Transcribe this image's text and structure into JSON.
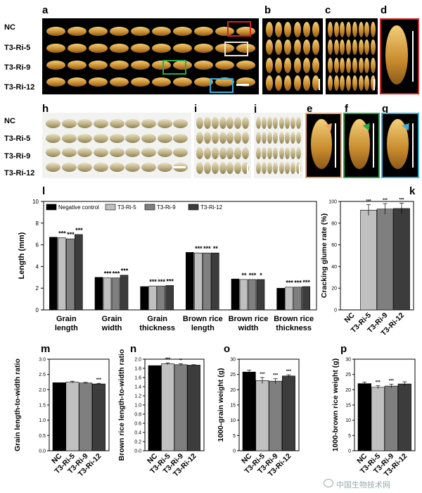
{
  "panel_labels": {
    "a": "a",
    "b": "b",
    "c": "c",
    "d": "d",
    "e": "e",
    "f": "f",
    "g": "g",
    "h": "h",
    "i": "i",
    "j": "j",
    "k": "k",
    "l": "l",
    "m": "m",
    "n": "n",
    "o": "o",
    "p": "p"
  },
  "rows_top": [
    "NC",
    "T3-Ri-5",
    "T3-Ri-9",
    "T3-Ri-12"
  ],
  "rows_bottom": [
    "NC",
    "T3-Ri-5",
    "T3-Ri-9",
    "T3-Ri-12"
  ],
  "colors": {
    "NC": "#000000",
    "T3-Ri-5": "#c0c0c0",
    "T3-Ri-9": "#7f7f7f",
    "T3-Ri-12": "#3c3c3c",
    "box_d": "#d12424",
    "box_e": "#e9a56b",
    "box_f": "#2aa84a",
    "box_g": "#3aaed8",
    "white_box": "#ecead8"
  },
  "watermark": "中国生物技术网",
  "chart_data": [
    {
      "id": "l",
      "type": "bar",
      "categories": [
        "Grain length",
        "Grain width",
        "Grain thickness",
        "Brown rice length",
        "Brown rice width",
        "Brown rice thickness"
      ],
      "category_lines": [
        [
          "Grain",
          "length"
        ],
        [
          "Grain",
          "width"
        ],
        [
          "Grain",
          "thickness"
        ],
        [
          "Brown rice",
          "length"
        ],
        [
          "Brown rice",
          "width"
        ],
        [
          "Brown rice",
          "thickness"
        ]
      ],
      "series": [
        {
          "name": "Negative control",
          "values": [
            6.7,
            3.0,
            2.15,
            5.3,
            2.85,
            2.0
          ]
        },
        {
          "name": "T3-Ri-5",
          "values": [
            6.65,
            2.95,
            2.2,
            5.25,
            2.8,
            2.1
          ]
        },
        {
          "name": "T3-Ri-9",
          "values": [
            6.55,
            2.95,
            2.2,
            5.25,
            2.8,
            2.1
          ]
        },
        {
          "name": "T3-Ri-12",
          "values": [
            6.95,
            3.2,
            2.25,
            5.25,
            2.8,
            2.15
          ]
        }
      ],
      "annotations": [
        [
          "",
          "***",
          "***",
          "***"
        ],
        [
          "",
          "***",
          "***",
          "***"
        ],
        [
          "",
          "***",
          "***",
          "***"
        ],
        [
          "",
          "***",
          "***",
          "**"
        ],
        [
          "",
          "**",
          "***",
          "*"
        ],
        [
          "",
          "***",
          "***",
          "***"
        ]
      ],
      "ylabel": "Length (mm)",
      "ylim": [
        0,
        10
      ],
      "yticks": [
        0,
        2,
        4,
        6,
        8,
        10
      ],
      "legend": "top"
    },
    {
      "id": "k",
      "type": "bar",
      "categories": [
        "NC",
        "T3-Ri-5",
        "T3-Ri-9",
        "T3-Ri-12"
      ],
      "values": [
        0,
        92,
        93,
        93.5
      ],
      "errors": [
        0,
        5,
        5,
        5
      ],
      "annotations": [
        "",
        "***",
        "***",
        "***"
      ],
      "ylabel": "Cracking glume rate (%)",
      "ylim": [
        0,
        100
      ],
      "yticks": [
        0,
        20,
        40,
        60,
        80,
        100
      ]
    },
    {
      "id": "m",
      "type": "bar",
      "categories": [
        "NC",
        "T3-Ri-5",
        "T3-Ri-9",
        "T3-Ri-12"
      ],
      "values": [
        2.23,
        2.25,
        2.22,
        2.19
      ],
      "errors": [
        0,
        0.03,
        0.02,
        0.02
      ],
      "annotations": [
        "",
        "",
        "",
        "***"
      ],
      "ylabel": "Grain length-to-width ratio",
      "ylim": [
        0,
        3.0
      ],
      "yticks": [
        0,
        0.5,
        1.0,
        1.5,
        2.0,
        2.5,
        3.0
      ]
    },
    {
      "id": "n",
      "type": "bar",
      "categories": [
        "NC",
        "T3-Ri-5",
        "T3-Ri-9",
        "T3-Ri-12"
      ],
      "values": [
        1.86,
        1.9,
        1.88,
        1.87
      ],
      "errors": [
        0,
        0.02,
        0.02,
        0.01
      ],
      "annotations": [
        "",
        "***",
        "**",
        ""
      ],
      "ylabel": "Brown rice length-to-width ratio",
      "ylim": [
        0,
        2.0
      ],
      "yticks": [
        0,
        0.2,
        0.4,
        0.6,
        0.8,
        1.0,
        1.2,
        1.4,
        1.6,
        1.8,
        2.0
      ]
    },
    {
      "id": "o",
      "type": "bar",
      "categories": [
        "NC",
        "T3-Ri-5",
        "T3-Ri-9",
        "T3-Ri-12"
      ],
      "values": [
        25.8,
        23.0,
        22.8,
        24.5
      ],
      "errors": [
        0.6,
        1.0,
        0.8,
        0.4
      ],
      "annotations": [
        "",
        "***",
        "***",
        "***"
      ],
      "ylabel": "1000-grain weight (g)",
      "ylim": [
        0,
        30
      ],
      "yticks": [
        0,
        5,
        10,
        15,
        20,
        25,
        30
      ]
    },
    {
      "id": "p",
      "type": "bar",
      "categories": [
        "NC",
        "T3-Ri-5",
        "T3-Ri-9",
        "T3-Ri-12"
      ],
      "values": [
        22.0,
        20.8,
        21.2,
        21.9
      ],
      "errors": [
        0.5,
        0.5,
        0.6,
        0.7
      ],
      "annotations": [
        "",
        "***",
        "***",
        ""
      ],
      "ylabel": "1000-brown rice weight (g)",
      "ylim": [
        0,
        30
      ],
      "yticks": [
        0,
        5,
        10,
        15,
        20,
        25,
        30
      ]
    }
  ]
}
